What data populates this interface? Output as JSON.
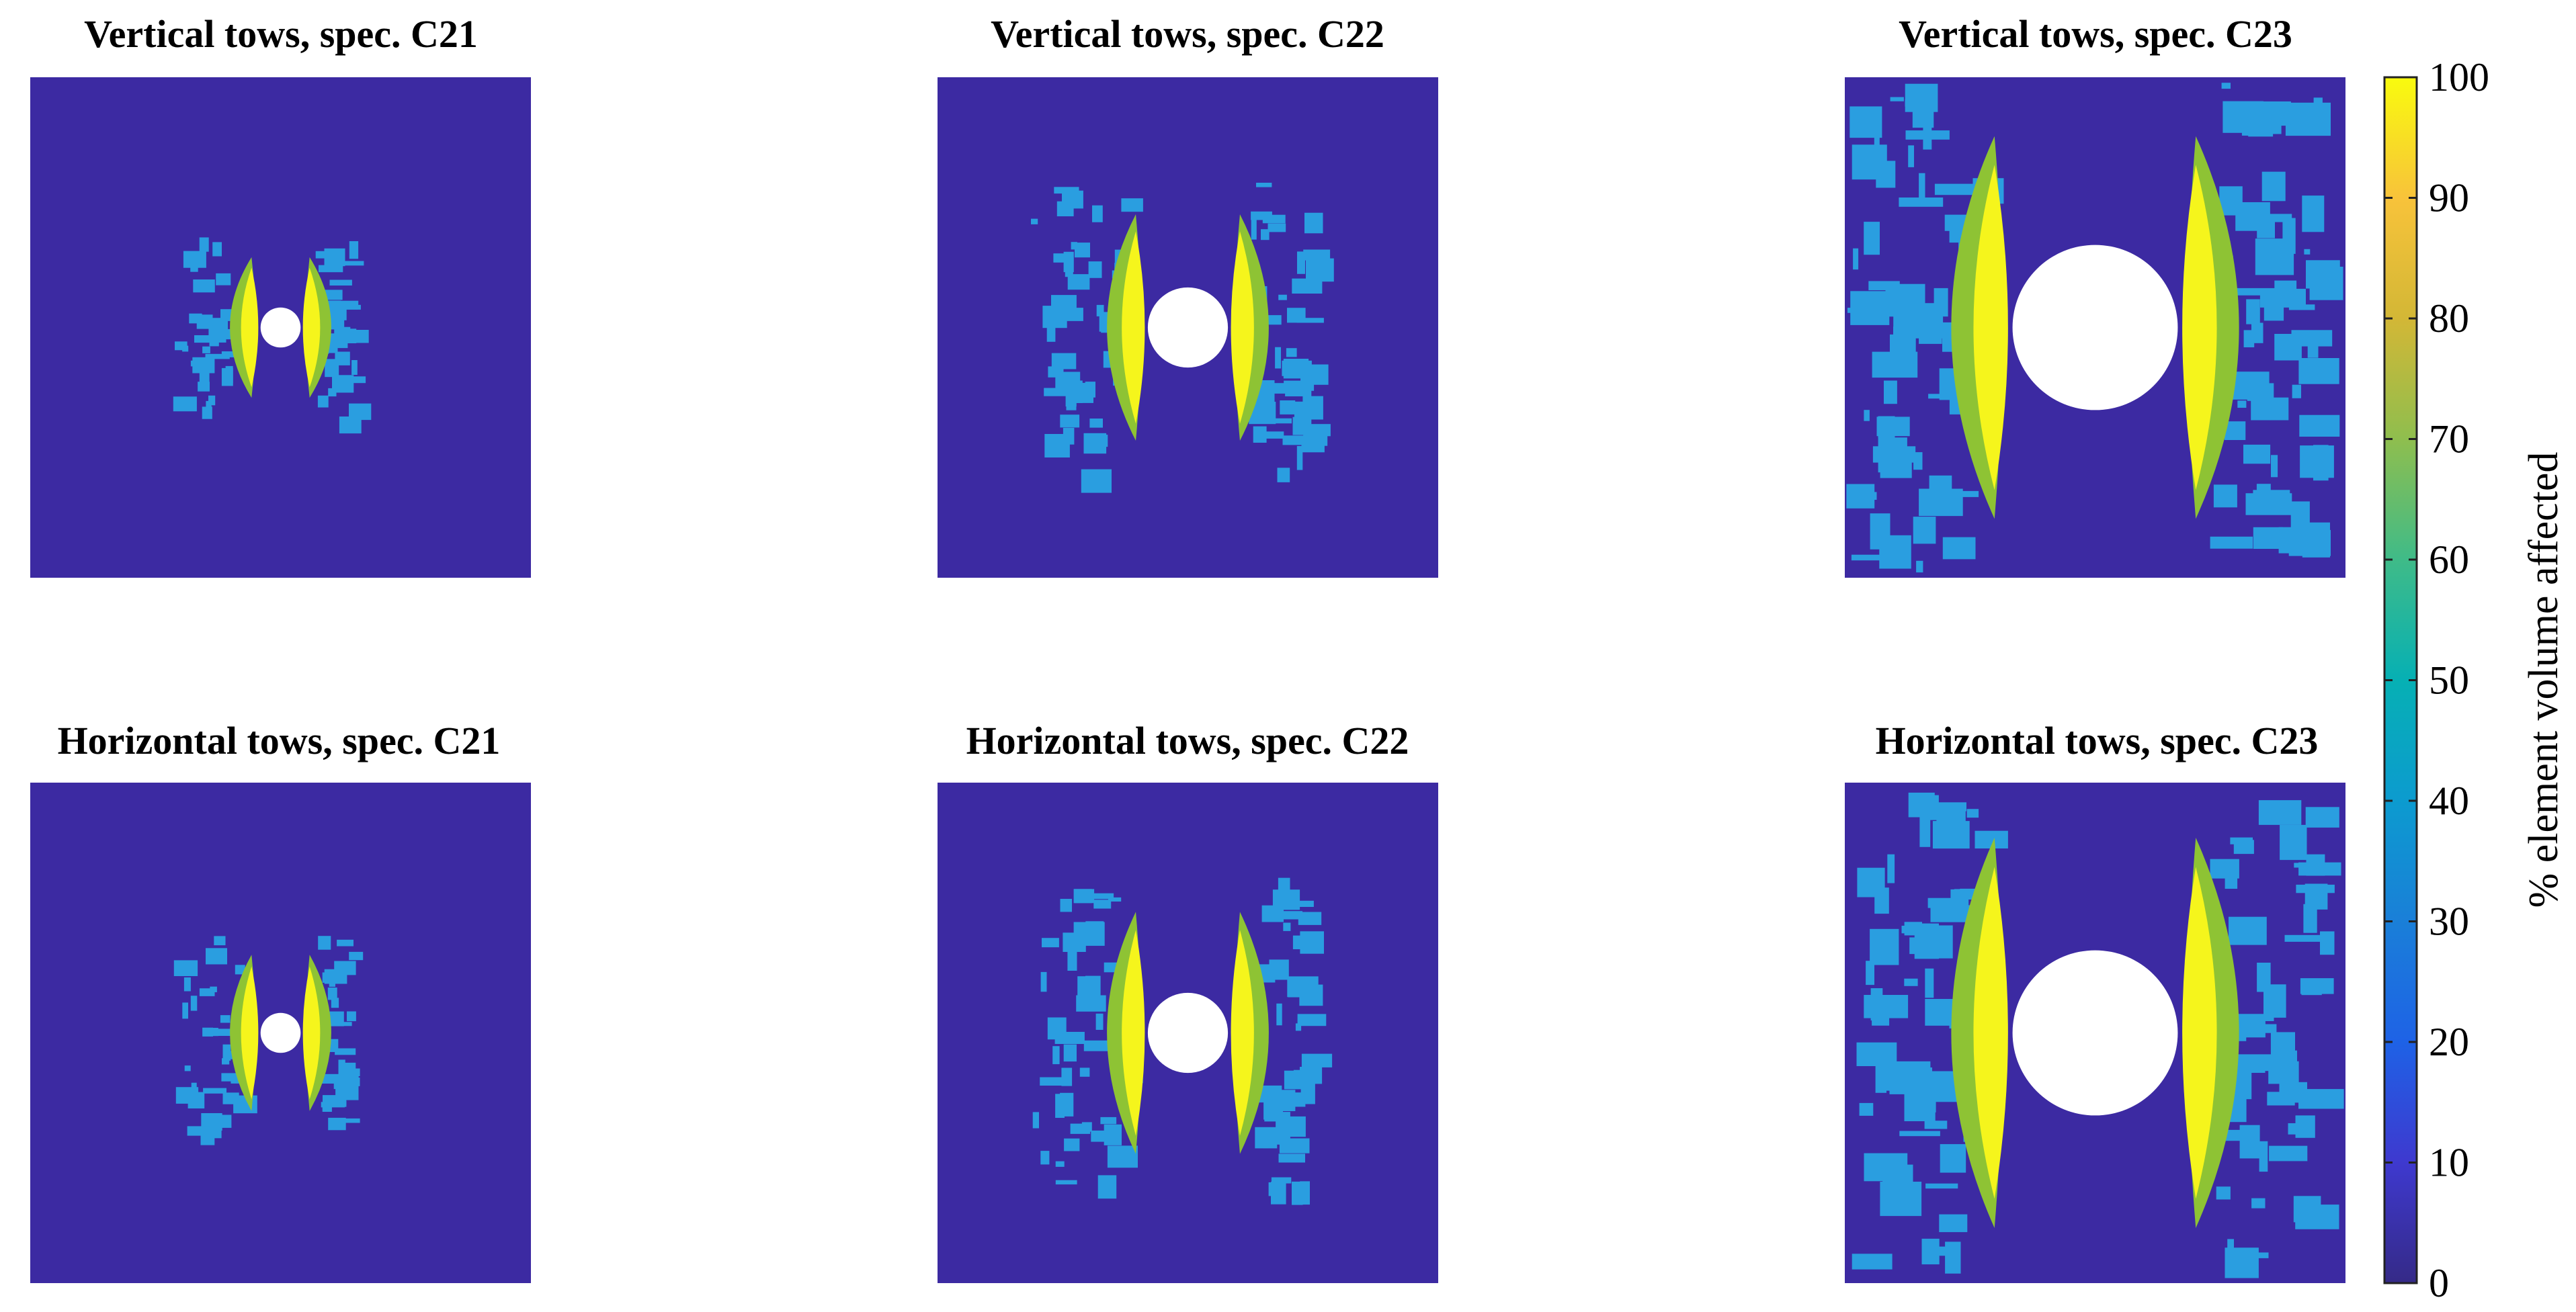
{
  "chart_data": {
    "type": "heatmap",
    "colormap": "parula",
    "panels": [
      {
        "title": "Vertical tows, spec. C21",
        "orientation": "vertical",
        "specimen": "C21",
        "hole_diameter": 0.08,
        "damage_extent": {
          "zone_height": 0.36,
          "yellow_band_width": 0.03,
          "max_value": 100
        }
      },
      {
        "title": "Vertical tows, spec. C22",
        "orientation": "vertical",
        "specimen": "C22",
        "hole_diameter": 0.16,
        "damage_extent": {
          "zone_height": 0.58,
          "yellow_band_width": 0.04,
          "max_value": 100
        }
      },
      {
        "title": "Vertical tows, spec. C23",
        "orientation": "vertical",
        "specimen": "C23",
        "hole_diameter": 0.33,
        "damage_extent": {
          "zone_height": 0.98,
          "yellow_band_width": 0.06,
          "max_value": 100
        }
      },
      {
        "title": "Horizontal tows, spec. C21",
        "orientation": "horizontal",
        "specimen": "C21",
        "hole_diameter": 0.08,
        "damage_extent": {
          "zone_height": 0.4,
          "yellow_band_width": 0.03,
          "max_value": 100
        }
      },
      {
        "title": "Horizontal tows, spec. C22",
        "orientation": "horizontal",
        "specimen": "C22",
        "hole_diameter": 0.16,
        "damage_extent": {
          "zone_height": 0.62,
          "yellow_band_width": 0.04,
          "max_value": 100
        }
      },
      {
        "title": "Horizontal tows, spec. C23",
        "orientation": "horizontal",
        "specimen": "C23",
        "hole_diameter": 0.33,
        "damage_extent": {
          "zone_height": 1.0,
          "yellow_band_width": 0.06,
          "max_value": 100
        }
      }
    ],
    "colorbar": {
      "label": "% element volume affected",
      "range": [
        0,
        100
      ],
      "ticks": [
        "0",
        "10",
        "20",
        "30",
        "40",
        "50",
        "60",
        "70",
        "80",
        "90",
        "100"
      ]
    }
  },
  "colors": {
    "background": "#3c2aa2",
    "hole": "#ffffff",
    "yellow": "#f5f51c",
    "green": "#8ec334",
    "blue": "#2a9ee0"
  }
}
